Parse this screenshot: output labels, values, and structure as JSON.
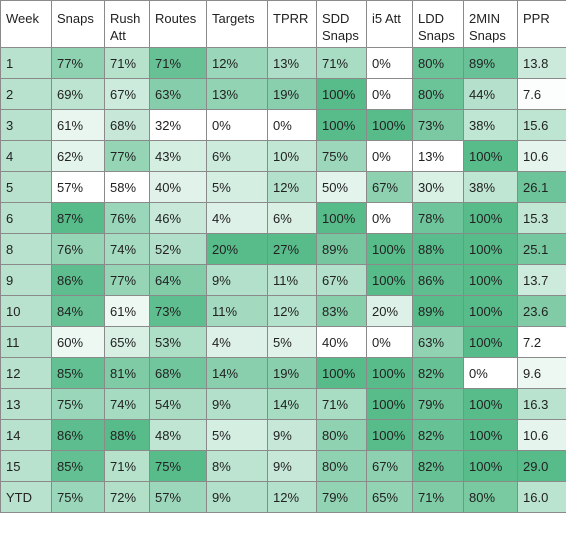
{
  "table": {
    "columns": [
      "Week",
      "Snaps",
      "Rush Att",
      "Routes",
      "Targets",
      "TPRR",
      "SDD Snaps",
      "i5 Att",
      "LDD Snaps",
      "2MIN Snaps",
      "PPR"
    ],
    "rows": [
      [
        "1",
        "77%",
        "71%",
        "71%",
        "12%",
        "13%",
        "71%",
        "0%",
        "80%",
        "89%",
        "13.8"
      ],
      [
        "2",
        "69%",
        "67%",
        "63%",
        "13%",
        "19%",
        "100%",
        "0%",
        "80%",
        "44%",
        "7.6"
      ],
      [
        "3",
        "61%",
        "68%",
        "32%",
        "0%",
        "0%",
        "100%",
        "100%",
        "73%",
        "38%",
        "15.6"
      ],
      [
        "4",
        "62%",
        "77%",
        "43%",
        "6%",
        "10%",
        "75%",
        "0%",
        "13%",
        "100%",
        "10.6"
      ],
      [
        "5",
        "57%",
        "58%",
        "40%",
        "5%",
        "12%",
        "50%",
        "67%",
        "30%",
        "38%",
        "26.1"
      ],
      [
        "6",
        "87%",
        "76%",
        "46%",
        "4%",
        "6%",
        "100%",
        "0%",
        "78%",
        "100%",
        "15.3"
      ],
      [
        "8",
        "76%",
        "74%",
        "52%",
        "20%",
        "27%",
        "89%",
        "100%",
        "88%",
        "100%",
        "25.1"
      ],
      [
        "9",
        "86%",
        "77%",
        "64%",
        "9%",
        "11%",
        "67%",
        "100%",
        "86%",
        "100%",
        "13.7"
      ],
      [
        "10",
        "84%",
        "61%",
        "73%",
        "11%",
        "12%",
        "83%",
        "20%",
        "89%",
        "100%",
        "23.6"
      ],
      [
        "11",
        "60%",
        "65%",
        "53%",
        "4%",
        "5%",
        "40%",
        "0%",
        "63%",
        "100%",
        "7.2"
      ],
      [
        "12",
        "85%",
        "81%",
        "68%",
        "14%",
        "19%",
        "100%",
        "100%",
        "82%",
        "0%",
        "9.6"
      ],
      [
        "13",
        "75%",
        "74%",
        "54%",
        "9%",
        "14%",
        "71%",
        "100%",
        "79%",
        "100%",
        "16.3"
      ],
      [
        "14",
        "86%",
        "88%",
        "48%",
        "5%",
        "9%",
        "80%",
        "100%",
        "82%",
        "100%",
        "10.6"
      ],
      [
        "15",
        "85%",
        "71%",
        "75%",
        "8%",
        "9%",
        "80%",
        "67%",
        "82%",
        "100%",
        "29.0"
      ],
      [
        "YTD",
        "75%",
        "72%",
        "57%",
        "9%",
        "12%",
        "79%",
        "65%",
        "71%",
        "80%",
        "16.0"
      ]
    ],
    "colors": {
      "scale_low": "#ffffff",
      "scale_high": "#57bb8a",
      "grid_line": "#8a8a8a",
      "text": "#222222"
    }
  }
}
